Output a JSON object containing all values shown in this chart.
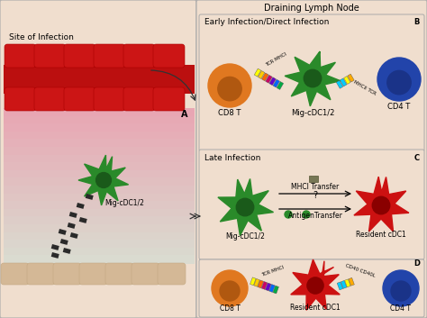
{
  "bg_color": "#f0dece",
  "panel_bg": "#f0dece",
  "white": "#ffffff",
  "red_cell_color": "#cc1111",
  "red_cell_dark": "#aa0000",
  "tan_cell_color": "#d4b896",
  "tan_cell_dark": "#c4a882",
  "pink_top": "#e8707a",
  "pink_bottom": "#f8e0e4",
  "green_dc_color": "#2a8a2a",
  "green_dc_dark": "#1a5a1a",
  "red_dc_color": "#cc1111",
  "red_dc_dark": "#8a0000",
  "orange_tcell": "#e07820",
  "orange_tcell_dark": "#b05810",
  "blue_tcell": "#2244aa",
  "blue_tcell_dark": "#1a3388",
  "draining_label": "Draining Lymph Node",
  "site_label": "Site of Infection",
  "panel_B_label": "Early Infection/Direct Infection",
  "panel_C_label": "Late Infection",
  "mig_label": "Mig-cDC1/2",
  "resident_label": "Resident cDC1",
  "cd8_label": "CD8 T",
  "cd4_label": "CD4 T",
  "mhci_label": "MHCI Transfer",
  "antigen_label": "AntigenTransfer",
  "tcr_mhci_label": "TCR MHCI",
  "mhcii_tcr_label": "MHCII TCR",
  "cd40_label": "CD40 CD40L"
}
